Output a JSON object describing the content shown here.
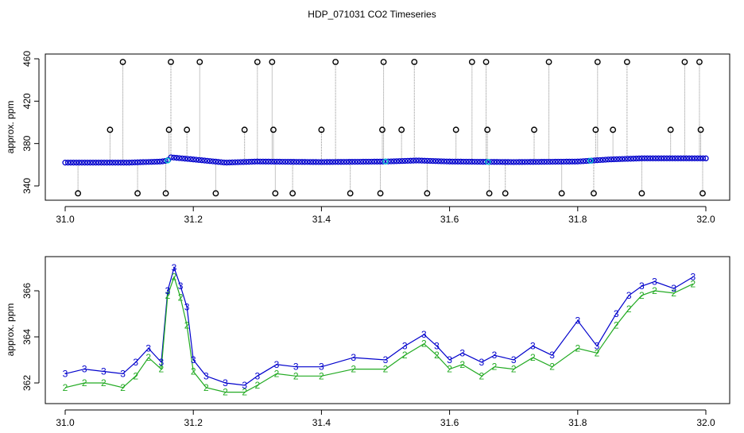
{
  "title": "HDP_071031  CO2 Timeseries",
  "colors": {
    "raw_points": "#000000",
    "raw_lines": "#8c8c8c",
    "series_3": "#0000cc",
    "series_2": "#22aa22",
    "cyan_markers": "#00cccc"
  },
  "chart_data": [
    {
      "type": "scatter",
      "panel": "top",
      "ylabel": "approx. ppm",
      "xlabel": "",
      "xlim": [
        31.0,
        32.0
      ],
      "ylim": [
        332,
        461
      ],
      "xticks": [
        31.0,
        31.2,
        31.4,
        31.6,
        31.8,
        32.0
      ],
      "yticks": [
        340,
        380,
        420,
        460
      ],
      "xtick_labels": [
        "31.0",
        "31.2",
        "31.4",
        "31.6",
        "31.8",
        "32.0"
      ],
      "ytick_labels": [
        "340",
        "380",
        "420",
        "460"
      ],
      "grid": false,
      "baseline": {
        "x": [
          31.0,
          31.1,
          31.15,
          31.16,
          31.165,
          31.2,
          31.25,
          31.3,
          31.4,
          31.5,
          31.55,
          31.6,
          31.7,
          31.8,
          31.85,
          31.9,
          31.95,
          32.0
        ],
        "y": [
          362,
          362,
          363,
          364,
          367,
          365,
          362,
          363,
          362.5,
          363,
          364,
          363,
          362.5,
          363,
          365,
          366,
          366,
          366
        ]
      },
      "spikes": [
        {
          "x": 31.02,
          "y": 333
        },
        {
          "x": 31.07,
          "y": 393
        },
        {
          "x": 31.09,
          "y": 457
        },
        {
          "x": 31.113,
          "y": 333
        },
        {
          "x": 31.157,
          "y": 333
        },
        {
          "x": 31.162,
          "y": 393
        },
        {
          "x": 31.165,
          "y": 457
        },
        {
          "x": 31.19,
          "y": 393
        },
        {
          "x": 31.21,
          "y": 457
        },
        {
          "x": 31.235,
          "y": 333
        },
        {
          "x": 31.28,
          "y": 393
        },
        {
          "x": 31.3,
          "y": 457
        },
        {
          "x": 31.323,
          "y": 457
        },
        {
          "x": 31.325,
          "y": 393
        },
        {
          "x": 31.328,
          "y": 333
        },
        {
          "x": 31.355,
          "y": 333
        },
        {
          "x": 31.4,
          "y": 393
        },
        {
          "x": 31.422,
          "y": 457
        },
        {
          "x": 31.445,
          "y": 333
        },
        {
          "x": 31.492,
          "y": 333
        },
        {
          "x": 31.495,
          "y": 393
        },
        {
          "x": 31.497,
          "y": 457
        },
        {
          "x": 31.525,
          "y": 393
        },
        {
          "x": 31.545,
          "y": 457
        },
        {
          "x": 31.565,
          "y": 333
        },
        {
          "x": 31.61,
          "y": 393
        },
        {
          "x": 31.635,
          "y": 457
        },
        {
          "x": 31.657,
          "y": 457
        },
        {
          "x": 31.659,
          "y": 393
        },
        {
          "x": 31.662,
          "y": 333
        },
        {
          "x": 31.687,
          "y": 333
        },
        {
          "x": 31.732,
          "y": 393
        },
        {
          "x": 31.755,
          "y": 457
        },
        {
          "x": 31.775,
          "y": 333
        },
        {
          "x": 31.825,
          "y": 333
        },
        {
          "x": 31.828,
          "y": 393
        },
        {
          "x": 31.831,
          "y": 457
        },
        {
          "x": 31.855,
          "y": 393
        },
        {
          "x": 31.877,
          "y": 457
        },
        {
          "x": 31.9,
          "y": 333
        },
        {
          "x": 31.945,
          "y": 393
        },
        {
          "x": 31.967,
          "y": 457
        },
        {
          "x": 31.99,
          "y": 457
        },
        {
          "x": 31.992,
          "y": 393
        },
        {
          "x": 31.995,
          "y": 333
        }
      ]
    },
    {
      "type": "line",
      "panel": "bottom",
      "ylabel": "approx. ppm",
      "xlabel": "",
      "xlim": [
        31.0,
        32.0
      ],
      "ylim": [
        361.0,
        367.5
      ],
      "xticks": [
        31.0,
        31.2,
        31.4,
        31.6,
        31.8,
        32.0
      ],
      "yticks": [
        362,
        364,
        366
      ],
      "xtick_labels": [
        "31.0",
        "31.2",
        "31.4",
        "31.6",
        "31.8",
        "32.0"
      ],
      "ytick_labels": [
        "362",
        "364",
        "366"
      ],
      "grid": false,
      "x": [
        31.0,
        31.03,
        31.06,
        31.09,
        31.11,
        31.13,
        31.15,
        31.16,
        31.17,
        31.18,
        31.19,
        31.2,
        31.22,
        31.25,
        31.28,
        31.3,
        31.33,
        31.36,
        31.4,
        31.45,
        31.5,
        31.53,
        31.56,
        31.58,
        31.6,
        31.62,
        31.65,
        31.67,
        31.7,
        31.73,
        31.76,
        31.8,
        31.83,
        31.86,
        31.88,
        31.9,
        31.92,
        31.95,
        31.98
      ],
      "series": [
        {
          "marker": "3",
          "values": [
            362.4,
            362.6,
            362.5,
            362.4,
            362.9,
            363.5,
            362.9,
            366.0,
            367.0,
            366.2,
            365.3,
            363.0,
            362.3,
            362.0,
            361.9,
            362.3,
            362.8,
            362.7,
            362.7,
            363.1,
            363.0,
            363.6,
            364.1,
            363.6,
            363.0,
            363.3,
            362.9,
            363.2,
            363.0,
            363.6,
            363.2,
            364.7,
            363.6,
            365.0,
            365.8,
            366.2,
            366.4,
            366.1,
            366.6
          ]
        },
        {
          "marker": "2",
          "values": [
            361.8,
            362.0,
            362.0,
            361.8,
            362.3,
            363.1,
            362.6,
            365.8,
            366.6,
            365.7,
            364.5,
            362.5,
            361.8,
            361.6,
            361.6,
            361.9,
            362.4,
            362.3,
            362.3,
            362.6,
            362.6,
            363.2,
            363.7,
            363.2,
            362.6,
            362.8,
            362.3,
            362.7,
            362.6,
            363.1,
            362.7,
            363.5,
            363.3,
            364.5,
            365.2,
            365.8,
            366.0,
            365.9,
            366.3
          ]
        }
      ]
    }
  ]
}
